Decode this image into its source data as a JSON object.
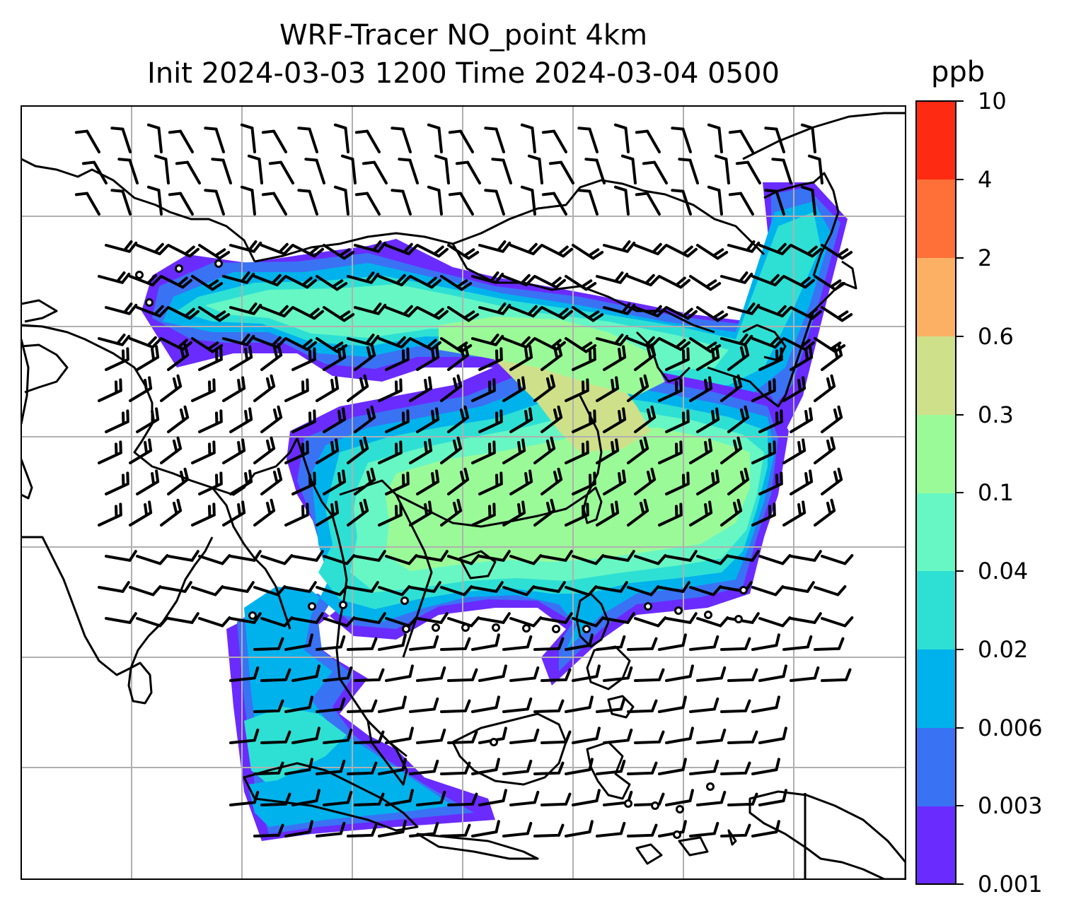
{
  "title": {
    "line1": "WRF-Tracer NO_point 4km",
    "line2": "Init 2024-03-03 1200 Time 2024-03-04 0500"
  },
  "colorbar": {
    "unit": "ppb",
    "tick_labels": [
      "0.001",
      "0.003",
      "0.006",
      "0.02",
      "0.04",
      "0.1",
      "0.3",
      "0.6",
      "2",
      "4",
      "10"
    ],
    "level_colors": [
      "#6a2bff",
      "#3a72f4",
      "#00b2ec",
      "#2ee0d4",
      "#67f7c4",
      "#9bfa98",
      "#cfe08a",
      "#fbb064",
      "#ff7038",
      "#ff2a12"
    ]
  },
  "map": {
    "field": "NO_point tracer",
    "grid": true,
    "overlays": [
      "coastlines",
      "country borders",
      "wind barbs"
    ],
    "colors": {
      "coast": "#000000",
      "grid": "#b0b0b0",
      "barb": "#000000"
    }
  }
}
